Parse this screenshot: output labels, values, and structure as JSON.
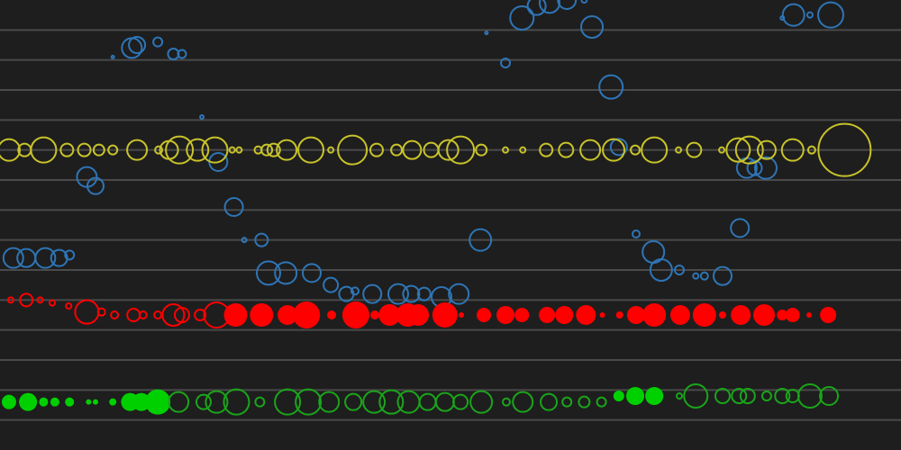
{
  "chart_data": {
    "type": "scatter",
    "variant": "bubble-timeline",
    "grid": "horizontal",
    "background": "#1e1e1e",
    "gridline_color": "#4a4a4a",
    "ylim": [
      0,
      15
    ],
    "xlim": [
      0,
      100
    ],
    "yticks": [
      1,
      2,
      3,
      4,
      5,
      6,
      7,
      8,
      9,
      10,
      11,
      12,
      13,
      14
    ],
    "series": [
      {
        "color": "#2e75b6",
        "style": "outline",
        "points": [
          {
            "x": 12,
            "y": 13.1,
            "r": 1.5
          },
          {
            "x": 14.2,
            "y": 13.4,
            "r": 11
          },
          {
            "x": 14.8,
            "y": 13.5,
            "r": 9
          },
          {
            "x": 17.2,
            "y": 13.6,
            "r": 5
          },
          {
            "x": 19,
            "y": 13.2,
            "r": 6
          },
          {
            "x": 20,
            "y": 13.2,
            "r": 4.5
          },
          {
            "x": 22.3,
            "y": 11.1,
            "r": 2
          },
          {
            "x": 24.2,
            "y": 9.6,
            "r": 10
          },
          {
            "x": 26,
            "y": 8.1,
            "r": 10
          },
          {
            "x": 27.2,
            "y": 7,
            "r": 2.5
          },
          {
            "x": 29.2,
            "y": 7,
            "r": 7
          },
          {
            "x": 9,
            "y": 9.1,
            "r": 11
          },
          {
            "x": 10,
            "y": 8.8,
            "r": 9
          },
          {
            "x": 0.5,
            "y": 6.4,
            "r": 11
          },
          {
            "x": 2,
            "y": 6.4,
            "r": 10
          },
          {
            "x": 4.2,
            "y": 6.4,
            "r": 11
          },
          {
            "x": 5.8,
            "y": 6.4,
            "r": 9
          },
          {
            "x": 7,
            "y": 6.5,
            "r": 5
          },
          {
            "x": 30,
            "y": 5.9,
            "r": 13
          },
          {
            "x": 32,
            "y": 5.9,
            "r": 12
          },
          {
            "x": 35,
            "y": 5.9,
            "r": 10
          },
          {
            "x": 37.2,
            "y": 5.5,
            "r": 8
          },
          {
            "x": 39,
            "y": 5.2,
            "r": 8
          },
          {
            "x": 40,
            "y": 5.3,
            "r": 4
          },
          {
            "x": 42,
            "y": 5.2,
            "r": 10
          },
          {
            "x": 45,
            "y": 5.2,
            "r": 11
          },
          {
            "x": 46.5,
            "y": 5.2,
            "r": 9
          },
          {
            "x": 48,
            "y": 5.2,
            "r": 7
          },
          {
            "x": 50,
            "y": 5.1,
            "r": 11
          },
          {
            "x": 52,
            "y": 5.2,
            "r": 11
          },
          {
            "x": 55.2,
            "y": 13.9,
            "r": 1.5
          },
          {
            "x": 54.5,
            "y": 7,
            "r": 12
          },
          {
            "x": 57.4,
            "y": 12.9,
            "r": 5
          },
          {
            "x": 59.3,
            "y": 14.4,
            "r": 13
          },
          {
            "x": 61,
            "y": 14.8,
            "r": 10
          },
          {
            "x": 62.5,
            "y": 14.9,
            "r": 11
          },
          {
            "x": 64.5,
            "y": 15,
            "r": 10
          },
          {
            "x": 66.5,
            "y": 15,
            "r": 3
          },
          {
            "x": 67.4,
            "y": 14.1,
            "r": 12
          },
          {
            "x": 69.6,
            "y": 12.1,
            "r": 13
          },
          {
            "x": 70.5,
            "y": 10.1,
            "r": 9
          },
          {
            "x": 72.5,
            "y": 7.2,
            "r": 4
          },
          {
            "x": 74.5,
            "y": 6.6,
            "r": 12
          },
          {
            "x": 75.4,
            "y": 6,
            "r": 12
          },
          {
            "x": 77.5,
            "y": 6,
            "r": 5
          },
          {
            "x": 79.4,
            "y": 5.8,
            "r": 3
          },
          {
            "x": 80.4,
            "y": 5.8,
            "r": 4
          },
          {
            "x": 82.5,
            "y": 5.8,
            "r": 10
          },
          {
            "x": 84.5,
            "y": 7.4,
            "r": 10
          },
          {
            "x": 85.3,
            "y": 9.4,
            "r": 11
          },
          {
            "x": 86.2,
            "y": 9.4,
            "r": 8
          },
          {
            "x": 87.5,
            "y": 9.4,
            "r": 12
          },
          {
            "x": 89.4,
            "y": 14.4,
            "r": 2
          },
          {
            "x": 90.7,
            "y": 14.5,
            "r": 12
          },
          {
            "x": 92.6,
            "y": 14.5,
            "r": 3
          },
          {
            "x": 95,
            "y": 14.5,
            "r": 14
          }
        ]
      },
      {
        "color": "#c8c32a",
        "style": "outline",
        "points": [
          {
            "x": 0,
            "y": 10,
            "r": 12
          },
          {
            "x": 1.8,
            "y": 10,
            "r": 7
          },
          {
            "x": 4,
            "y": 10,
            "r": 14
          },
          {
            "x": 6.7,
            "y": 10,
            "r": 7
          },
          {
            "x": 8.7,
            "y": 10,
            "r": 7
          },
          {
            "x": 10.4,
            "y": 10,
            "r": 6
          },
          {
            "x": 12,
            "y": 10,
            "r": 5
          },
          {
            "x": 14.8,
            "y": 10,
            "r": 11
          },
          {
            "x": 17.3,
            "y": 10,
            "r": 4
          },
          {
            "x": 18.5,
            "y": 10,
            "r": 10
          },
          {
            "x": 19.7,
            "y": 10,
            "r": 15
          },
          {
            "x": 21.8,
            "y": 10,
            "r": 12
          },
          {
            "x": 23.8,
            "y": 10,
            "r": 14
          },
          {
            "x": 25.8,
            "y": 10,
            "r": 3
          },
          {
            "x": 26.6,
            "y": 10,
            "r": 3
          },
          {
            "x": 28.8,
            "y": 10,
            "r": 4
          },
          {
            "x": 29.8,
            "y": 10,
            "r": 6
          },
          {
            "x": 30.6,
            "y": 10,
            "r": 7
          },
          {
            "x": 32.1,
            "y": 10,
            "r": 11
          },
          {
            "x": 34.9,
            "y": 10,
            "r": 14
          },
          {
            "x": 37.2,
            "y": 10,
            "r": 3
          },
          {
            "x": 39.7,
            "y": 10,
            "r": 16
          },
          {
            "x": 42.5,
            "y": 10,
            "r": 7
          },
          {
            "x": 44.8,
            "y": 10,
            "r": 6
          },
          {
            "x": 46.6,
            "y": 10,
            "r": 10
          },
          {
            "x": 48.8,
            "y": 10,
            "r": 8
          },
          {
            "x": 50.8,
            "y": 10,
            "r": 11
          },
          {
            "x": 52.2,
            "y": 10,
            "r": 15
          },
          {
            "x": 54.6,
            "y": 10,
            "r": 6
          },
          {
            "x": 57.4,
            "y": 10,
            "r": 3
          },
          {
            "x": 59.4,
            "y": 10,
            "r": 3
          },
          {
            "x": 62.1,
            "y": 10,
            "r": 7
          },
          {
            "x": 64.4,
            "y": 10,
            "r": 8
          },
          {
            "x": 67.2,
            "y": 10,
            "r": 11
          },
          {
            "x": 69.9,
            "y": 10,
            "r": 12
          },
          {
            "x": 72.4,
            "y": 10,
            "r": 5
          },
          {
            "x": 74.6,
            "y": 10,
            "r": 14
          },
          {
            "x": 77.4,
            "y": 10,
            "r": 3
          },
          {
            "x": 79.2,
            "y": 10,
            "r": 8
          },
          {
            "x": 82.4,
            "y": 10,
            "r": 3
          },
          {
            "x": 84.3,
            "y": 10,
            "r": 13
          },
          {
            "x": 85.6,
            "y": 10,
            "r": 15
          },
          {
            "x": 87.6,
            "y": 10,
            "r": 10
          },
          {
            "x": 90.6,
            "y": 10,
            "r": 12
          },
          {
            "x": 92.8,
            "y": 10,
            "r": 4
          },
          {
            "x": 96.6,
            "y": 10,
            "r": 29
          }
        ]
      },
      {
        "color": "#ff0000",
        "style": "outline-then-filled",
        "filled_from_x": 24.5,
        "points": [
          {
            "x": 0.2,
            "y": 5,
            "r": 3
          },
          {
            "x": 2,
            "y": 5,
            "r": 7
          },
          {
            "x": 3.6,
            "y": 5,
            "r": 3
          },
          {
            "x": 5,
            "y": 4.9,
            "r": 3
          },
          {
            "x": 6.9,
            "y": 4.8,
            "r": 3
          },
          {
            "x": 9,
            "y": 4.6,
            "r": 13
          },
          {
            "x": 10.7,
            "y": 4.6,
            "r": 4
          },
          {
            "x": 12.2,
            "y": 4.5,
            "r": 4
          },
          {
            "x": 14.4,
            "y": 4.5,
            "r": 7
          },
          {
            "x": 15.5,
            "y": 4.5,
            "r": 4
          },
          {
            "x": 17.2,
            "y": 4.5,
            "r": 4
          },
          {
            "x": 19,
            "y": 4.5,
            "r": 12
          },
          {
            "x": 20,
            "y": 4.5,
            "r": 8
          },
          {
            "x": 22.1,
            "y": 4.5,
            "r": 6
          },
          {
            "x": 24,
            "y": 4.5,
            "r": 14
          },
          {
            "x": 26.2,
            "y": 4.5,
            "r": 13
          },
          {
            "x": 29.2,
            "y": 4.5,
            "r": 13
          },
          {
            "x": 32.2,
            "y": 4.5,
            "r": 11
          },
          {
            "x": 34.4,
            "y": 4.5,
            "r": 15
          },
          {
            "x": 37.3,
            "y": 4.5,
            "r": 5
          },
          {
            "x": 40.1,
            "y": 4.5,
            "r": 15
          },
          {
            "x": 42.3,
            "y": 4.5,
            "r": 5
          },
          {
            "x": 44,
            "y": 4.5,
            "r": 12
          },
          {
            "x": 46.1,
            "y": 4.5,
            "r": 13
          },
          {
            "x": 47.3,
            "y": 4.5,
            "r": 12
          },
          {
            "x": 50.4,
            "y": 4.5,
            "r": 14
          },
          {
            "x": 52.3,
            "y": 4.5,
            "r": 3
          },
          {
            "x": 54.9,
            "y": 4.5,
            "r": 8
          },
          {
            "x": 57.4,
            "y": 4.5,
            "r": 10
          },
          {
            "x": 59.3,
            "y": 4.5,
            "r": 8
          },
          {
            "x": 62.2,
            "y": 4.5,
            "r": 9
          },
          {
            "x": 64.2,
            "y": 4.5,
            "r": 10
          },
          {
            "x": 66.7,
            "y": 4.5,
            "r": 11
          },
          {
            "x": 68.6,
            "y": 4.5,
            "r": 3
          },
          {
            "x": 70.6,
            "y": 4.5,
            "r": 4
          },
          {
            "x": 72.5,
            "y": 4.5,
            "r": 10
          },
          {
            "x": 74.6,
            "y": 4.5,
            "r": 13
          },
          {
            "x": 77.6,
            "y": 4.5,
            "r": 11
          },
          {
            "x": 80.4,
            "y": 4.5,
            "r": 13
          },
          {
            "x": 82.5,
            "y": 4.5,
            "r": 4
          },
          {
            "x": 84.6,
            "y": 4.5,
            "r": 11
          },
          {
            "x": 87.3,
            "y": 4.5,
            "r": 12
          },
          {
            "x": 89.4,
            "y": 4.5,
            "r": 6
          },
          {
            "x": 90.6,
            "y": 4.5,
            "r": 8
          },
          {
            "x": 92.5,
            "y": 4.5,
            "r": 3
          },
          {
            "x": 94.7,
            "y": 4.5,
            "r": 9
          }
        ]
      },
      {
        "color": "#1aa51a",
        "filled_color": "#00d000",
        "style": "filled-then-outline",
        "filled_ranges": [
          [
            0,
            17.5
          ],
          [
            69.5,
            76.5
          ]
        ],
        "points": [
          {
            "x": 0,
            "y": 1.6,
            "r": 8
          },
          {
            "x": 2.2,
            "y": 1.6,
            "r": 10
          },
          {
            "x": 4,
            "y": 1.6,
            "r": 5
          },
          {
            "x": 5.3,
            "y": 1.6,
            "r": 5
          },
          {
            "x": 7,
            "y": 1.6,
            "r": 5
          },
          {
            "x": 9.2,
            "y": 1.6,
            "r": 3
          },
          {
            "x": 10,
            "y": 1.6,
            "r": 3
          },
          {
            "x": 12,
            "y": 1.6,
            "r": 4
          },
          {
            "x": 14,
            "y": 1.6,
            "r": 10
          },
          {
            "x": 15.3,
            "y": 1.6,
            "r": 10
          },
          {
            "x": 17.2,
            "y": 1.6,
            "r": 14
          },
          {
            "x": 19.6,
            "y": 1.6,
            "r": 11
          },
          {
            "x": 22.5,
            "y": 1.6,
            "r": 8
          },
          {
            "x": 24,
            "y": 1.6,
            "r": 12
          },
          {
            "x": 26.3,
            "y": 1.6,
            "r": 14
          },
          {
            "x": 29,
            "y": 1.6,
            "r": 5
          },
          {
            "x": 32.2,
            "y": 1.6,
            "r": 14
          },
          {
            "x": 34.6,
            "y": 1.6,
            "r": 14
          },
          {
            "x": 37,
            "y": 1.6,
            "r": 11
          },
          {
            "x": 39.8,
            "y": 1.6,
            "r": 9
          },
          {
            "x": 42.2,
            "y": 1.6,
            "r": 12
          },
          {
            "x": 44.2,
            "y": 1.6,
            "r": 13
          },
          {
            "x": 46.2,
            "y": 1.6,
            "r": 12
          },
          {
            "x": 48.4,
            "y": 1.6,
            "r": 9
          },
          {
            "x": 50.4,
            "y": 1.6,
            "r": 10
          },
          {
            "x": 52.2,
            "y": 1.6,
            "r": 8
          },
          {
            "x": 54.6,
            "y": 1.6,
            "r": 12
          },
          {
            "x": 57.5,
            "y": 1.6,
            "r": 4
          },
          {
            "x": 59.4,
            "y": 1.6,
            "r": 11
          },
          {
            "x": 62.4,
            "y": 1.6,
            "r": 9
          },
          {
            "x": 64.5,
            "y": 1.6,
            "r": 5
          },
          {
            "x": 66.5,
            "y": 1.6,
            "r": 6
          },
          {
            "x": 68.5,
            "y": 1.6,
            "r": 5
          },
          {
            "x": 70.5,
            "y": 1.8,
            "r": 6
          },
          {
            "x": 72.4,
            "y": 1.8,
            "r": 10
          },
          {
            "x": 74.6,
            "y": 1.8,
            "r": 10
          },
          {
            "x": 77.5,
            "y": 1.8,
            "r": 3
          },
          {
            "x": 79.4,
            "y": 1.8,
            "r": 13
          },
          {
            "x": 82.5,
            "y": 1.8,
            "r": 8
          },
          {
            "x": 84.4,
            "y": 1.8,
            "r": 8
          },
          {
            "x": 85.4,
            "y": 1.8,
            "r": 8
          },
          {
            "x": 87.6,
            "y": 1.8,
            "r": 5
          },
          {
            "x": 89.4,
            "y": 1.8,
            "r": 8
          },
          {
            "x": 90.6,
            "y": 1.8,
            "r": 7
          },
          {
            "x": 92.6,
            "y": 1.8,
            "r": 13
          },
          {
            "x": 94.8,
            "y": 1.8,
            "r": 10
          }
        ]
      }
    ]
  }
}
